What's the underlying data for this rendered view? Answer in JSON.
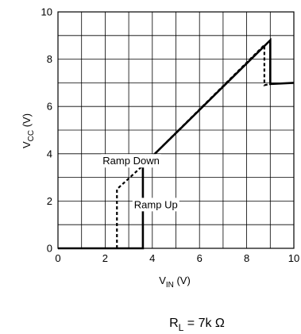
{
  "chart_data": {
    "type": "line",
    "xlabel": {
      "base": "V",
      "sub": "IN",
      "tail": " (V)"
    },
    "ylabel": {
      "base": "V",
      "sub": "CC",
      "tail": " (V)"
    },
    "xlim": [
      0,
      10
    ],
    "ylim": [
      0,
      10
    ],
    "x_ticks": [
      0,
      2,
      4,
      6,
      8,
      10
    ],
    "y_ticks": [
      0,
      2,
      4,
      6,
      8,
      10
    ],
    "x_grid_step": 1,
    "y_grid_step": 1,
    "grid": true,
    "colors": {
      "line": "#000000",
      "grid": "#000000"
    },
    "series": [
      {
        "name": "Ramp Up",
        "style": "solid",
        "points": [
          [
            0,
            0
          ],
          [
            3.6,
            0
          ],
          [
            3.6,
            3.5
          ],
          [
            9.0,
            8.8
          ],
          [
            9.0,
            6.95
          ],
          [
            10,
            7.0
          ]
        ]
      },
      {
        "name": "Ramp Down",
        "style": "dashed",
        "points": [
          [
            2.5,
            0
          ],
          [
            2.5,
            2.5
          ],
          [
            3.6,
            3.5
          ],
          [
            8.75,
            8.6
          ],
          [
            8.75,
            6.9
          ],
          [
            9.0,
            6.95
          ]
        ]
      }
    ],
    "annotations": [
      {
        "text": "Ramp Down",
        "x": 3.1,
        "y": 3.7
      },
      {
        "text": "Ramp Up",
        "x": 4.15,
        "y": 1.85
      }
    ],
    "caption": {
      "base": "R",
      "sub": "L",
      "tail": " = 7k ",
      "symbol": "Ω"
    }
  }
}
